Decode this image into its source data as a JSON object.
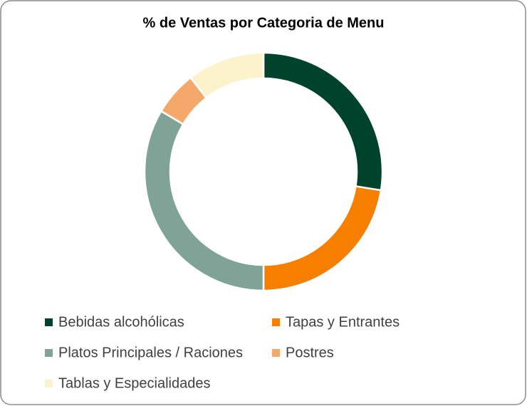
{
  "chart_data": {
    "type": "donut",
    "title": "% de Ventas por Categoria de Menu",
    "categories": [
      "Bebidas alcohólicas",
      "Tapas y Entrantes",
      "Platos Principales / Raciones",
      "Postres",
      "Tablas y Especialidades"
    ],
    "values": [
      27.5,
      22.5,
      33.5,
      6,
      10.5
    ],
    "colors": [
      "#00432c",
      "#f77f00",
      "#7fa396",
      "#f4a96a",
      "#fcf2cc"
    ],
    "legend": "bottom"
  }
}
